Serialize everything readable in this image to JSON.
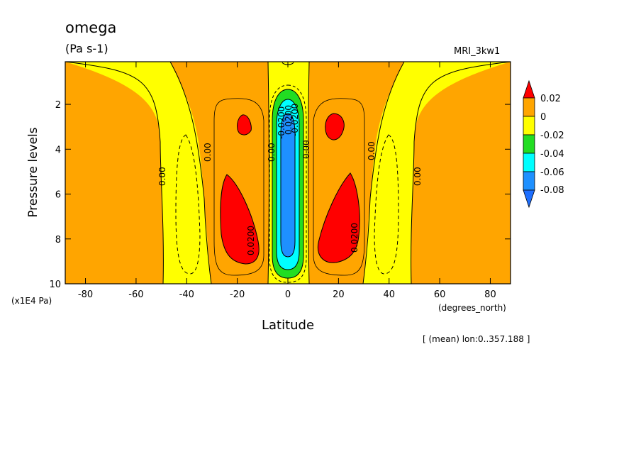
{
  "chart_data": {
    "type": "contour",
    "title": "omega",
    "units": "(Pa s-1)",
    "model": "MRI_3kw1",
    "xlabel": "Latitude",
    "x_units": "(degrees_north)",
    "ylabel": "Pressure levels",
    "y_units": "(x1E4 Pa)",
    "footnote": "[ (mean) lon:0..357.188 ]",
    "xlim": [
      -88,
      88
    ],
    "ylim": [
      10,
      0.1
    ],
    "x_ticks": [
      "-80",
      "-60",
      "-40",
      "-20",
      "0",
      "20",
      "40",
      "60",
      "80"
    ],
    "y_ticks": [
      "2",
      "4",
      "6",
      "8",
      "10"
    ],
    "colorbar": {
      "labels": [
        "0.02",
        "0",
        "-0.02",
        "-0.04",
        "-0.06",
        "-0.08"
      ],
      "colors": [
        "#ff0000",
        "#ffa500",
        "#ffff00",
        "#22dd22",
        "#00ffff",
        "#1e90ff",
        "#1e6fff"
      ]
    },
    "contour_labels": [
      "0.00",
      "0.00",
      "0.00",
      "0.00",
      "0.00",
      "0.00",
      "0.0200",
      "0.0200",
      "-0.0200",
      "-0.0200",
      "0.0200"
    ]
  }
}
